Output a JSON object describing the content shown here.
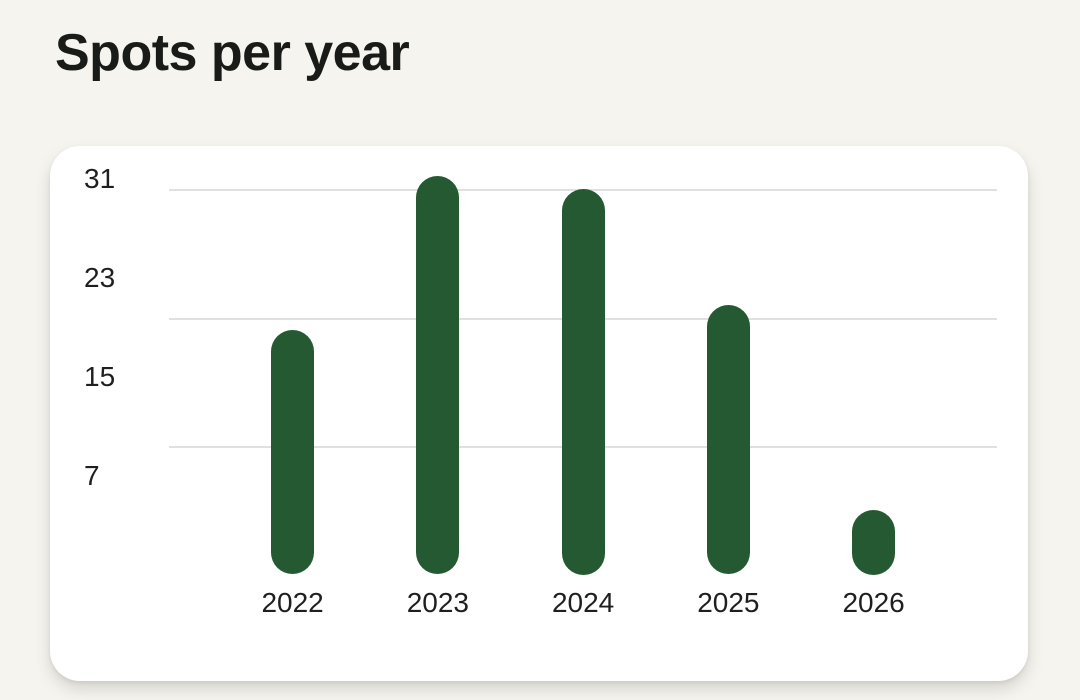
{
  "header": {
    "title": "Spots per year"
  },
  "colors": {
    "page_background": "#f5f4ee",
    "card_background": "#ffffff",
    "bar_green": "#255931",
    "gridline": "#e0e0e0",
    "axis_text": "#1f1f1f",
    "title_text": "#181b18"
  },
  "chart_data": {
    "type": "bar",
    "title": "Spots per year",
    "categories": [
      "2022",
      "2023",
      "2024",
      "2025",
      "2026"
    ],
    "values": [
      19,
      31,
      30,
      21,
      5
    ],
    "y_tick_labels": [
      31,
      23,
      15,
      7
    ],
    "gridline_values": [
      30,
      20,
      10
    ],
    "xlabel": "",
    "ylabel": "",
    "ylim": [
      0,
      31
    ],
    "grid": "horizontal-only",
    "legend": "none",
    "bar_style": "rounded-pill"
  }
}
